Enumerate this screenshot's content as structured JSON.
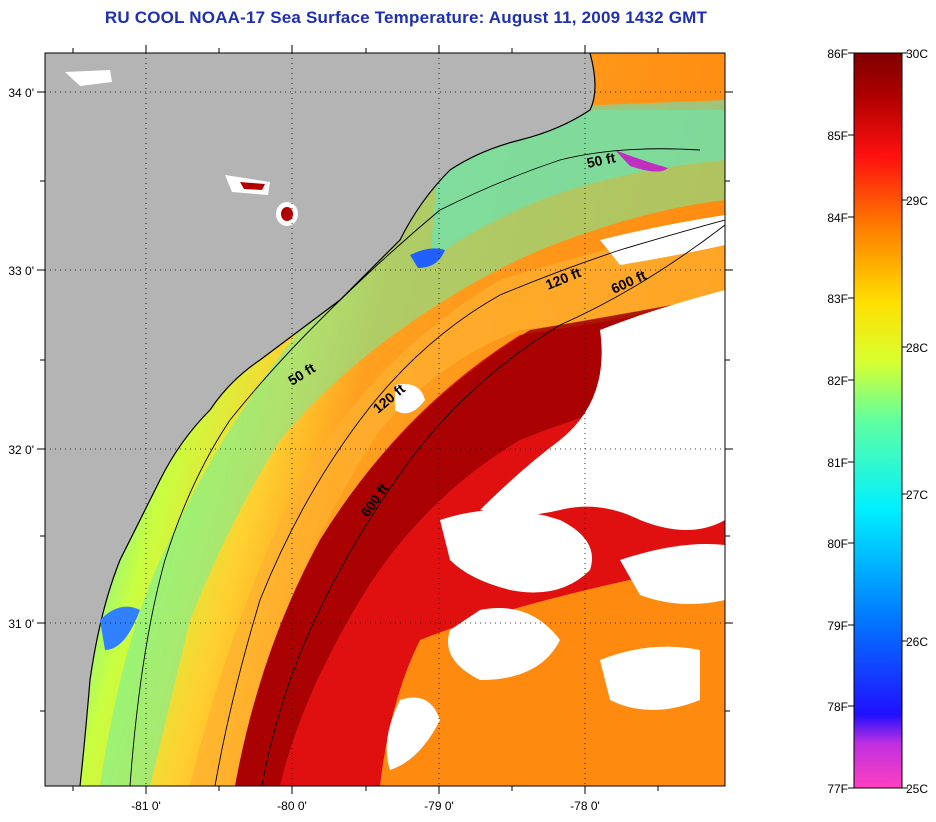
{
  "title": "RU COOL  NOAA-17  Sea Surface Temperature:  August 11, 2009 1432 GMT",
  "map": {
    "lat_ticks": [
      "34 0'",
      "33 0'",
      "32 0'",
      "31 0'"
    ],
    "lon_ticks": [
      "-81 0'",
      "-80 0'",
      "-79 0'",
      "-78 0'"
    ],
    "contours": [
      {
        "label": "50 ft",
        "id": "contour-50ft-north"
      },
      {
        "label": "50 ft",
        "id": "contour-50ft-south"
      },
      {
        "label": "120 ft",
        "id": "contour-120ft-north"
      },
      {
        "label": "120 ft",
        "id": "contour-120ft-south"
      },
      {
        "label": "600 ft",
        "id": "contour-600ft-north"
      },
      {
        "label": "600 ft",
        "id": "contour-600ft-south"
      }
    ],
    "land_color": "#b4b4b4",
    "cloud_color": "#ffffff"
  },
  "colorbar": {
    "fahrenheit": [
      "86F",
      "85F",
      "84F",
      "83F",
      "82F",
      "81F",
      "80F",
      "79F",
      "78F",
      "77F"
    ],
    "celsius": [
      "30C",
      "29C",
      "28C",
      "27C",
      "26C",
      "25C"
    ],
    "stops": [
      "#ff40c0",
      "#9a20f0",
      "#2010ff",
      "#0090ff",
      "#00f0ff",
      "#60ffa0",
      "#d8ff30",
      "#ffd000",
      "#ff7000",
      "#ff1010",
      "#b00000",
      "#800000"
    ]
  }
}
